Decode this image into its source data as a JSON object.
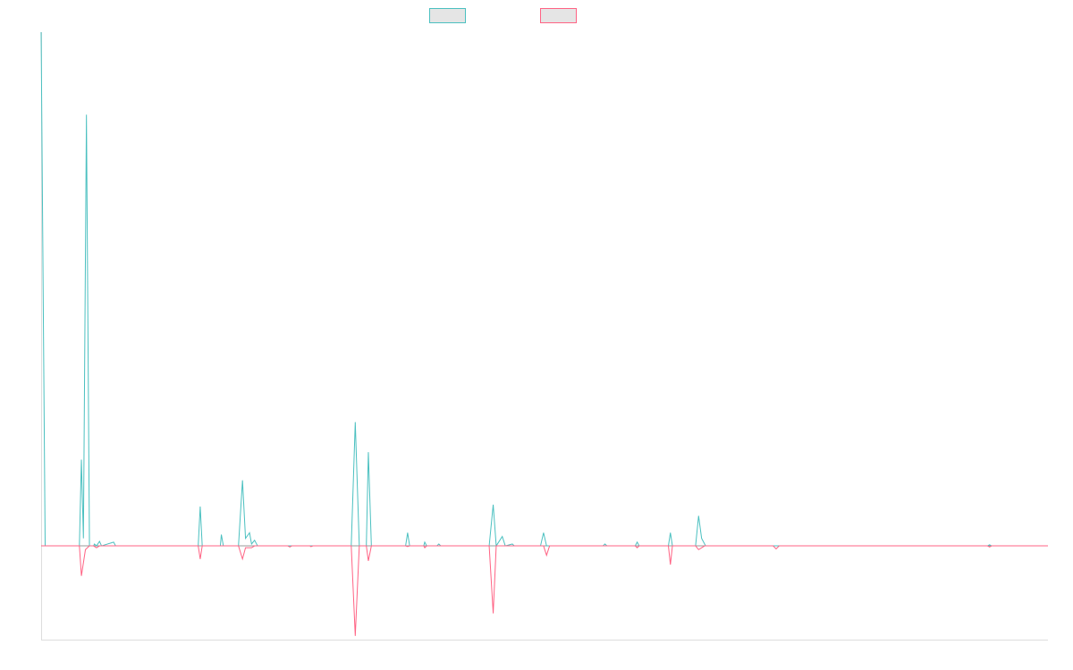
{
  "chart_data": {
    "type": "line",
    "title": "",
    "xlabel": "",
    "ylabel": "",
    "legend": "top-center",
    "grid": false,
    "ylim": [
      -25,
      137
    ],
    "xlim": [
      0,
      1000
    ],
    "series": [
      {
        "color": "#4bc0c0",
        "fill": "rgba(201,203,207,0.5)",
        "points": [
          [
            0,
            137
          ],
          [
            4,
            0
          ],
          [
            38,
            0
          ],
          [
            40,
            23
          ],
          [
            42,
            2
          ],
          [
            45,
            115
          ],
          [
            48,
            0
          ],
          [
            52,
            0
          ],
          [
            53,
            0.5
          ],
          [
            55,
            0
          ],
          [
            58,
            1.2
          ],
          [
            60,
            0
          ],
          [
            72,
            1.0
          ],
          [
            74,
            0
          ],
          [
            156,
            0
          ],
          [
            158,
            10.5
          ],
          [
            160,
            0
          ],
          [
            178,
            0
          ],
          [
            179,
            3
          ],
          [
            181,
            0
          ],
          [
            196,
            0
          ],
          [
            200,
            17.5
          ],
          [
            203,
            2
          ],
          [
            207,
            3.5
          ],
          [
            209,
            0.5
          ],
          [
            212,
            1.5
          ],
          [
            215,
            0
          ],
          [
            308,
            0
          ],
          [
            312,
            33
          ],
          [
            316,
            0
          ],
          [
            323,
            0
          ],
          [
            325,
            25
          ],
          [
            328,
            0
          ],
          [
            362,
            0
          ],
          [
            364,
            3.5
          ],
          [
            366,
            0
          ],
          [
            380,
            0
          ],
          [
            381,
            1
          ],
          [
            383,
            0
          ],
          [
            393,
            0
          ],
          [
            395,
            0.5
          ],
          [
            397,
            0
          ],
          [
            445,
            0
          ],
          [
            449,
            11
          ],
          [
            452,
            0
          ],
          [
            458,
            2.5
          ],
          [
            461,
            0
          ],
          [
            468,
            0.5
          ],
          [
            470,
            0
          ],
          [
            496,
            0
          ],
          [
            499,
            3.5
          ],
          [
            502,
            0
          ],
          [
            558,
            0
          ],
          [
            560,
            0.5
          ],
          [
            562,
            0
          ],
          [
            590,
            0
          ],
          [
            592,
            1
          ],
          [
            594,
            0
          ],
          [
            623,
            0
          ],
          [
            625,
            3.5
          ],
          [
            627,
            0
          ],
          [
            650,
            0
          ],
          [
            653,
            8
          ],
          [
            656,
            2
          ],
          [
            660,
            0
          ],
          [
            940,
            0
          ],
          [
            942,
            0.3
          ],
          [
            944,
            0
          ],
          [
            1000,
            0
          ]
        ]
      },
      {
        "color": "#ff6384",
        "fill": "rgba(201,203,207,0.5)",
        "points": [
          [
            0,
            0
          ],
          [
            38,
            0
          ],
          [
            40,
            -8
          ],
          [
            44,
            -1
          ],
          [
            48,
            0
          ],
          [
            52,
            0
          ],
          [
            55,
            -0.5
          ],
          [
            58,
            0
          ],
          [
            156,
            0
          ],
          [
            158,
            -3.5
          ],
          [
            160,
            0
          ],
          [
            196,
            0
          ],
          [
            200,
            -3.5
          ],
          [
            203,
            -0.5
          ],
          [
            209,
            -0.5
          ],
          [
            212,
            0
          ],
          [
            245,
            0
          ],
          [
            247,
            -0.3
          ],
          [
            249,
            0
          ],
          [
            267,
            0
          ],
          [
            268,
            -0.2
          ],
          [
            270,
            0
          ],
          [
            308,
            0
          ],
          [
            312,
            -24
          ],
          [
            316,
            0
          ],
          [
            323,
            0
          ],
          [
            325,
            -4
          ],
          [
            328,
            0
          ],
          [
            362,
            0
          ],
          [
            364,
            -0.2
          ],
          [
            366,
            0
          ],
          [
            380,
            0
          ],
          [
            381,
            -0.5
          ],
          [
            383,
            0
          ],
          [
            445,
            0
          ],
          [
            449,
            -18
          ],
          [
            452,
            0
          ],
          [
            499,
            0
          ],
          [
            502,
            -2.5
          ],
          [
            505,
            0
          ],
          [
            590,
            0
          ],
          [
            592,
            -0.5
          ],
          [
            594,
            0
          ],
          [
            623,
            0
          ],
          [
            625,
            -5
          ],
          [
            627,
            0
          ],
          [
            650,
            0
          ],
          [
            653,
            -1
          ],
          [
            656,
            -0.5
          ],
          [
            659,
            0
          ],
          [
            727,
            0
          ],
          [
            730,
            -0.8
          ],
          [
            733,
            0
          ],
          [
            940,
            0
          ],
          [
            942,
            -0.3
          ],
          [
            944,
            0
          ],
          [
            1000,
            0
          ]
        ]
      }
    ]
  }
}
